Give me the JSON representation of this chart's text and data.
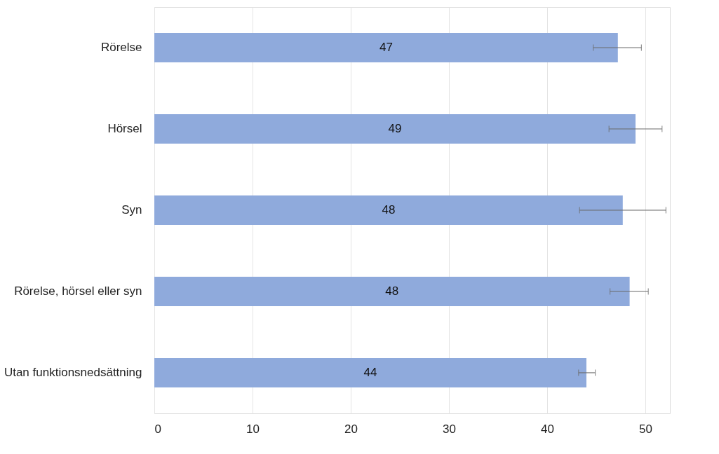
{
  "chart_data": {
    "type": "bar",
    "orientation": "horizontal",
    "categories": [
      "Rörelse",
      "Hörsel",
      "Syn",
      "Rörelse, hörsel eller syn",
      "Utan funktionsnedsättning"
    ],
    "values": [
      47.2,
      49.0,
      47.7,
      48.4,
      44.0
    ],
    "value_labels": [
      "47",
      "49",
      "48",
      "48",
      "44"
    ],
    "errors": [
      [
        44.7,
        49.6
      ],
      [
        46.3,
        51.7
      ],
      [
        43.3,
        52.1
      ],
      [
        46.4,
        50.3
      ],
      [
        43.2,
        44.9
      ]
    ],
    "color": "#8faadc",
    "xlim": [
      0,
      52.5
    ],
    "xticks": [
      0,
      10,
      20,
      30,
      40,
      50
    ],
    "grid": "x"
  }
}
